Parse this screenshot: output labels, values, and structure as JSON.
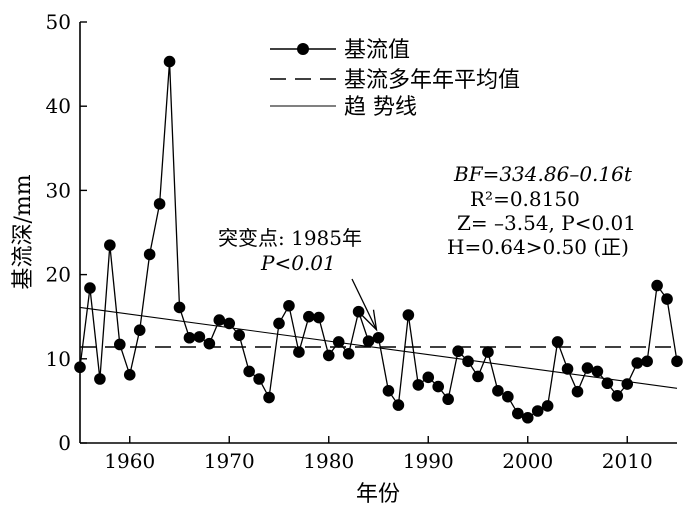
{
  "chart_data": {
    "type": "line",
    "title": "",
    "xlabel": "年份",
    "ylabel": "基流深/mm",
    "xlim": [
      1955,
      2015
    ],
    "ylim": [
      0,
      50
    ],
    "x_ticks": [
      1960,
      1970,
      1980,
      1990,
      2000,
      2010
    ],
    "y_ticks": [
      0,
      10,
      20,
      30,
      40,
      50
    ],
    "grid": false,
    "legend_position": "top-center",
    "legend": [
      {
        "label": "基流值",
        "style": "line-marker"
      },
      {
        "label": "基流多年年平均值",
        "style": "dashed"
      },
      {
        "label": "趋 势线",
        "style": "solid-thin"
      }
    ],
    "series": [
      {
        "name": "基流值",
        "x": [
          1955,
          1956,
          1957,
          1958,
          1959,
          1960,
          1961,
          1962,
          1963,
          1964,
          1965,
          1966,
          1967,
          1968,
          1969,
          1970,
          1971,
          1972,
          1973,
          1974,
          1975,
          1976,
          1977,
          1978,
          1979,
          1980,
          1981,
          1982,
          1983,
          1984,
          1985,
          1986,
          1987,
          1988,
          1989,
          1990,
          1991,
          1992,
          1993,
          1994,
          1995,
          1996,
          1997,
          1998,
          1999,
          2000,
          2001,
          2002,
          2003,
          2004,
          2005,
          2006,
          2007,
          2008,
          2009,
          2010,
          2011,
          2012,
          2013,
          2014,
          2015
        ],
        "y": [
          9.0,
          18.4,
          7.6,
          23.5,
          11.7,
          8.1,
          13.4,
          22.4,
          28.4,
          45.3,
          16.1,
          12.5,
          12.6,
          11.8,
          14.6,
          14.2,
          12.8,
          8.5,
          7.6,
          5.4,
          14.2,
          16.3,
          10.8,
          15.0,
          14.9,
          10.4,
          12.0,
          10.6,
          15.6,
          12.1,
          12.5,
          6.2,
          4.5,
          15.2,
          6.9,
          7.8,
          6.7,
          5.2,
          10.9,
          9.7,
          7.9,
          10.8,
          6.2,
          5.5,
          3.5,
          3.0,
          3.8,
          4.4,
          12.0,
          8.8,
          6.1,
          8.9,
          8.5,
          7.1,
          5.6,
          7.0,
          9.5,
          9.7,
          18.7,
          17.1,
          9.7
        ]
      },
      {
        "name": "基流多年年平均值",
        "x": [
          1955,
          2015
        ],
        "y": [
          11.4,
          11.4
        ]
      },
      {
        "name": "趋 势线",
        "x": [
          1955,
          2015
        ],
        "y": [
          16.1,
          6.5
        ]
      }
    ],
    "annotations": {
      "equation": "BF=334.86–0.16t",
      "r2": "R²=0.8150",
      "z_test": "Z= –3.54, P<0.01",
      "hurst": "H=0.64>0.50 (正)",
      "change_point_label": "突变点: 1985年",
      "change_point_p": "P<0.01",
      "change_point_year": 1985,
      "change_point_value": 12.5
    }
  }
}
